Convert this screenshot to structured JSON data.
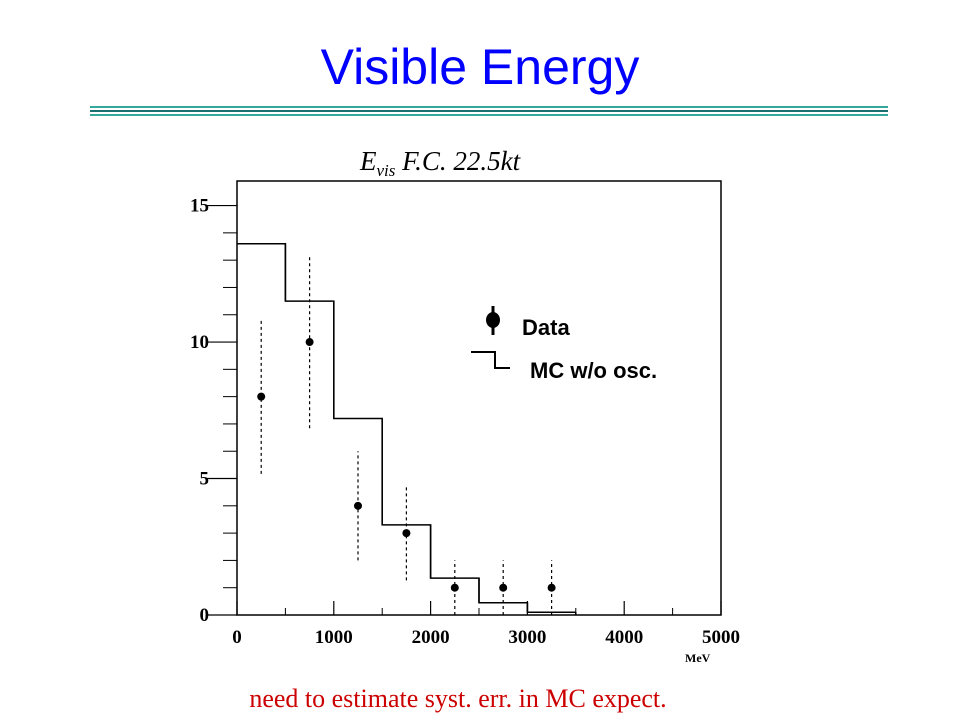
{
  "slide": {
    "title": "Visible Energy",
    "footer": "need to estimate syst. err. in MC expect."
  },
  "colors": {
    "title": "#0000ff",
    "rule_light": "#33aa99",
    "rule_dark": "#1a6f6f",
    "footer": "#cc0000",
    "plot": "#000000"
  },
  "chart_data": {
    "type": "bar",
    "title_main": "E",
    "title_sub": "vis",
    "title_rest": " F.C. 22.5kt",
    "xlabel": "MeV",
    "ylabel": "",
    "xlim": [
      0,
      5000
    ],
    "ylim": [
      0,
      15.9
    ],
    "x_ticks": [
      0,
      1000,
      2000,
      3000,
      4000,
      5000
    ],
    "y_ticks": [
      0,
      5,
      10,
      15
    ],
    "legend": {
      "placement": "center-right",
      "items": [
        {
          "label": "Data",
          "symbol": "point-with-error"
        },
        {
          "label": "MC w/o osc.",
          "symbol": "histogram-step"
        }
      ]
    },
    "mc_histogram": {
      "name": "MC w/o osc.",
      "bin_edges": [
        0,
        500,
        1000,
        1500,
        2000,
        2500,
        3000,
        3500
      ],
      "values": [
        13.6,
        11.5,
        7.2,
        3.3,
        1.35,
        0.45,
        0.1
      ]
    },
    "data_points": {
      "name": "Data",
      "x": [
        250,
        750,
        1250,
        1750,
        2250,
        2750,
        3250
      ],
      "y": [
        8,
        10,
        4,
        3,
        1,
        1,
        1
      ],
      "err_low": [
        2.83,
        3.16,
        2.0,
        1.73,
        1.0,
        1.0,
        1.0
      ],
      "err_high": [
        2.83,
        3.16,
        2.0,
        1.73,
        1.0,
        1.0,
        1.0
      ]
    }
  }
}
